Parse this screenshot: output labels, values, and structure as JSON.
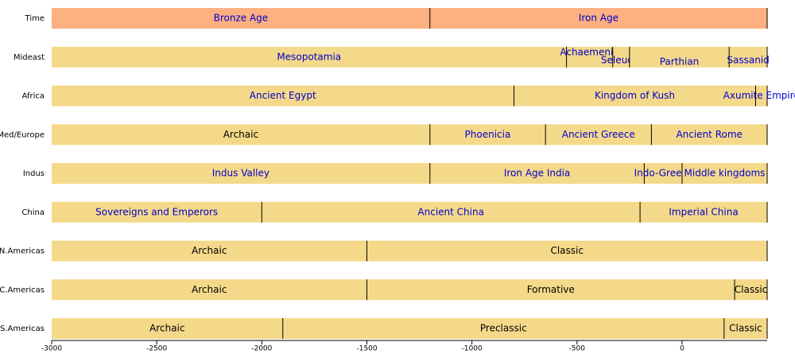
{
  "chart_data": {
    "type": "timeline",
    "xlim": [
      -3000,
      405
    ],
    "xticks": [
      -3000,
      -2500,
      -2000,
      -1500,
      -1000,
      -500,
      0
    ],
    "rows": [
      {
        "name": "Time",
        "color": "#fdb080",
        "periods": [
          {
            "label": "Bronze Age",
            "start": -3000,
            "end": -1200,
            "text_color": "#0000cc"
          },
          {
            "label": "Iron Age",
            "start": -1200,
            "end": 405,
            "text_color": "#0000cc"
          }
        ]
      },
      {
        "name": "Mideast",
        "color": "#f5d98a",
        "periods": [
          {
            "label": "Mesopotamia",
            "start": -3000,
            "end": -550,
            "text_color": "#0000cc"
          },
          {
            "label": "Achaemenid",
            "start": -550,
            "end": -330,
            "text_color": "#0000cc"
          },
          {
            "label": "Seleucid",
            "start": -330,
            "end": -250,
            "text_color": "#0000cc"
          },
          {
            "label": "Parthian",
            "start": -250,
            "end": 224,
            "text_color": "#0000cc"
          },
          {
            "label": "Sassanid",
            "start": 224,
            "end": 405,
            "text_color": "#0000cc"
          }
        ]
      },
      {
        "name": "Africa",
        "color": "#f5d98a",
        "periods": [
          {
            "label": "Ancient Egypt",
            "start": -3000,
            "end": -800,
            "text_color": "#0000cc"
          },
          {
            "label": "Kingdom of Kush",
            "start": -800,
            "end": 350,
            "text_color": "#0000cc"
          },
          {
            "label": "Axumite Empire",
            "start": 350,
            "end": 405,
            "text_color": "#0000cc"
          }
        ]
      },
      {
        "name": "Med/Europe",
        "color": "#f5d98a",
        "periods": [
          {
            "label": "Archaic",
            "start": -3000,
            "end": -1200,
            "text_color": "#000000"
          },
          {
            "label": "Phoenicia",
            "start": -1200,
            "end": -650,
            "text_color": "#0000cc"
          },
          {
            "label": "Ancient Greece",
            "start": -650,
            "end": -146,
            "text_color": "#0000cc"
          },
          {
            "label": "Ancient Rome",
            "start": -146,
            "end": 405,
            "text_color": "#0000cc"
          }
        ]
      },
      {
        "name": "Indus",
        "color": "#f5d98a",
        "periods": [
          {
            "label": "Indus Valley",
            "start": -3000,
            "end": -1200,
            "text_color": "#0000cc"
          },
          {
            "label": "Iron Age India",
            "start": -1200,
            "end": -180,
            "text_color": "#0000cc"
          },
          {
            "label": "Indo-Greeks",
            "start": -180,
            "end": 0,
            "text_color": "#0000cc"
          },
          {
            "label": "Middle kingdoms",
            "start": 0,
            "end": 405,
            "text_color": "#0000cc"
          }
        ]
      },
      {
        "name": "China",
        "color": "#f5d98a",
        "periods": [
          {
            "label": "Sovereigns and Emperors",
            "start": -3000,
            "end": -2000,
            "text_color": "#0000cc"
          },
          {
            "label": "Ancient China",
            "start": -2000,
            "end": -200,
            "text_color": "#0000cc"
          },
          {
            "label": "Imperial China",
            "start": -200,
            "end": 405,
            "text_color": "#0000cc"
          }
        ]
      },
      {
        "name": "N.Americas",
        "color": "#f5d98a",
        "periods": [
          {
            "label": "Archaic",
            "start": -3000,
            "end": -1500,
            "text_color": "#000000"
          },
          {
            "label": "Classic",
            "start": -1500,
            "end": 405,
            "text_color": "#000000"
          }
        ]
      },
      {
        "name": "C.Americas",
        "color": "#f5d98a",
        "periods": [
          {
            "label": "Archaic",
            "start": -3000,
            "end": -1500,
            "text_color": "#000000"
          },
          {
            "label": "Formative",
            "start": -1500,
            "end": 250,
            "text_color": "#000000"
          },
          {
            "label": "Classic",
            "start": 250,
            "end": 405,
            "text_color": "#000000"
          }
        ]
      },
      {
        "name": "S.Americas",
        "color": "#f5d98a",
        "periods": [
          {
            "label": "Archaic",
            "start": -3000,
            "end": -1900,
            "text_color": "#000000"
          },
          {
            "label": "Preclassic",
            "start": -1900,
            "end": 200,
            "text_color": "#000000"
          },
          {
            "label": "Classic",
            "start": 200,
            "end": 405,
            "text_color": "#000000"
          }
        ]
      }
    ]
  }
}
